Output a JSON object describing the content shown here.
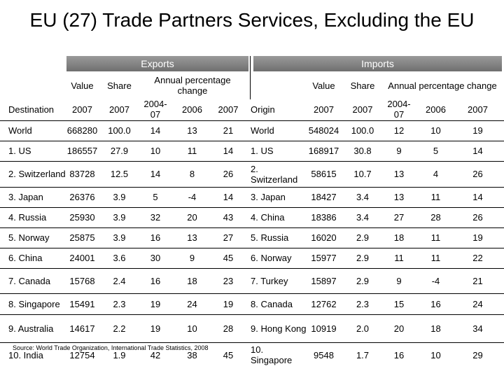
{
  "title": "EU (27) Trade Partners Services, Excluding the EU",
  "exports_label": "Exports",
  "imports_label": "Imports",
  "headers": {
    "value": "Value",
    "share": "Share",
    "annual": "Annual percentage change",
    "destination": "Destination",
    "origin": "Origin",
    "y2007": "2007",
    "y2004_07": "2004-07",
    "y2006": "2006"
  },
  "exports": [
    {
      "name": "World",
      "value": "668280",
      "share": "100.0",
      "p0407": "14",
      "p06": "13",
      "p07": "21"
    },
    {
      "name": "1. US",
      "value": "186557",
      "share": "27.9",
      "p0407": "10",
      "p06": "11",
      "p07": "14"
    },
    {
      "name": "2. Switzerland",
      "value": "83728",
      "share": "12.5",
      "p0407": "14",
      "p06": "8",
      "p07": "26"
    },
    {
      "name": "3. Japan",
      "value": "26376",
      "share": "3.9",
      "p0407": "5",
      "p06": "-4",
      "p07": "14"
    },
    {
      "name": "4. Russia",
      "value": "25930",
      "share": "3.9",
      "p0407": "32",
      "p06": "20",
      "p07": "43"
    },
    {
      "name": "5. Norway",
      "value": "25875",
      "share": "3.9",
      "p0407": "16",
      "p06": "13",
      "p07": "27"
    },
    {
      "name": "6. China",
      "value": "24001",
      "share": "3.6",
      "p0407": "30",
      "p06": "9",
      "p07": "45"
    },
    {
      "name": "7. Canada",
      "value": "15768",
      "share": "2.4",
      "p0407": "16",
      "p06": "18",
      "p07": "23"
    },
    {
      "name": "8. Singapore",
      "value": "15491",
      "share": "2.3",
      "p0407": "19",
      "p06": "24",
      "p07": "19"
    },
    {
      "name": "9. Australia",
      "value": "14617",
      "share": "2.2",
      "p0407": "19",
      "p06": "10",
      "p07": "28"
    },
    {
      "name": "10. India",
      "value": "12754",
      "share": "1.9",
      "p0407": "42",
      "p06": "38",
      "p07": "45"
    }
  ],
  "imports": [
    {
      "name": "World",
      "value": "548024",
      "share": "100.0",
      "p0407": "12",
      "p06": "10",
      "p07": "19"
    },
    {
      "name": "1. US",
      "value": "168917",
      "share": "30.8",
      "p0407": "9",
      "p06": "5",
      "p07": "14"
    },
    {
      "name": "2. Switzerland",
      "value": "58615",
      "share": "10.7",
      "p0407": "13",
      "p06": "4",
      "p07": "26"
    },
    {
      "name": "3. Japan",
      "value": "18427",
      "share": "3.4",
      "p0407": "13",
      "p06": "11",
      "p07": "14"
    },
    {
      "name": "4. China",
      "value": "18386",
      "share": "3.4",
      "p0407": "27",
      "p06": "28",
      "p07": "26"
    },
    {
      "name": "5. Russia",
      "value": "16020",
      "share": "2.9",
      "p0407": "18",
      "p06": "11",
      "p07": "19"
    },
    {
      "name": "6. Norway",
      "value": "15977",
      "share": "2.9",
      "p0407": "11",
      "p06": "11",
      "p07": "22"
    },
    {
      "name": "7. Turkey",
      "value": "15897",
      "share": "2.9",
      "p0407": "9",
      "p06": "-4",
      "p07": "21"
    },
    {
      "name": "8. Canada",
      "value": "12762",
      "share": "2.3",
      "p0407": "15",
      "p06": "16",
      "p07": "24"
    },
    {
      "name": "9. Hong Kong",
      "value": "10919",
      "share": "2.0",
      "p0407": "20",
      "p06": "18",
      "p07": "34"
    },
    {
      "name": "10. Singapore",
      "value": "9548",
      "share": "1.7",
      "p0407": "16",
      "p06": "10",
      "p07": "29"
    }
  ],
  "source": "Source: World Trade Organization, International Trade Statistics, 2008"
}
